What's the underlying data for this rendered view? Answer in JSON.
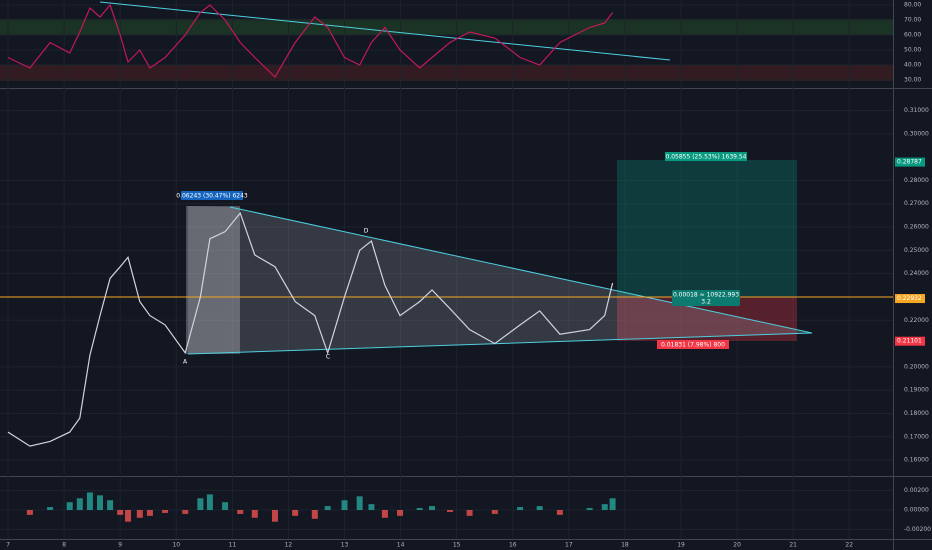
{
  "x_axis": {
    "xlim": [
      6.857,
      22.78
    ],
    "xticks": [
      7,
      8,
      9,
      10,
      11,
      12,
      13,
      14,
      15,
      16,
      17,
      18,
      19,
      20,
      21,
      22
    ]
  },
  "panes": [
    {
      "type": "line",
      "color": "#c2185b",
      "ylim": [
        24.67,
        83.33
      ],
      "yticks": [
        {
          "value": 80,
          "label": "80.00"
        },
        {
          "value": 70,
          "label": "70.00"
        },
        {
          "value": 60,
          "label": "60.00"
        },
        {
          "value": 50,
          "label": "50.00"
        },
        {
          "value": 40,
          "label": "40.00"
        },
        {
          "value": 30,
          "label": "30.00"
        }
      ],
      "x": [
        7.0,
        7.39,
        7.75,
        8.1,
        8.28,
        8.46,
        8.64,
        8.82,
        9.0,
        9.14,
        9.35,
        9.53,
        9.8,
        10.16,
        10.43,
        10.6,
        10.87,
        11.14,
        11.4,
        11.76,
        12.12,
        12.47,
        12.7,
        13.0,
        13.27,
        13.48,
        13.72,
        13.99,
        14.34,
        14.56,
        14.88,
        15.23,
        15.68,
        16.13,
        16.48,
        16.84,
        17.37,
        17.64,
        17.78
      ],
      "values": [
        45,
        38,
        55,
        48,
        62,
        78,
        72,
        80,
        60,
        42,
        50,
        38,
        45,
        60,
        75,
        80,
        70,
        55,
        45,
        32,
        55,
        72,
        65,
        45,
        40,
        55,
        65,
        50,
        38,
        45,
        55,
        62,
        58,
        45,
        40,
        55,
        65,
        68,
        75
      ]
    },
    {
      "type": "line",
      "color": "#d1d4dc",
      "ylim": [
        0.1536,
        0.3188
      ],
      "yticks": [
        {
          "value": 0.31,
          "label": "0.31000"
        },
        {
          "value": 0.3,
          "label": "0.30000"
        },
        {
          "value": 0.28,
          "label": "0.28000"
        },
        {
          "value": 0.27,
          "label": "0.27000"
        },
        {
          "value": 0.26,
          "label": "0.26000"
        },
        {
          "value": 0.25,
          "label": "0.25000"
        },
        {
          "value": 0.24,
          "label": "0.24000"
        },
        {
          "value": 0.22,
          "label": "0.22000"
        },
        {
          "value": 0.2,
          "label": "0.20000"
        },
        {
          "value": 0.19,
          "label": "0.19000"
        },
        {
          "value": 0.18,
          "label": "0.18000"
        },
        {
          "value": 0.17,
          "label": "0.17000"
        },
        {
          "value": 0.16,
          "label": "0.16000"
        }
      ],
      "x": [
        7.0,
        7.39,
        7.75,
        8.1,
        8.28,
        8.46,
        8.64,
        8.82,
        9.0,
        9.14,
        9.35,
        9.53,
        9.8,
        10.16,
        10.43,
        10.6,
        10.87,
        11.14,
        11.4,
        11.76,
        12.12,
        12.47,
        12.7,
        13.0,
        13.27,
        13.48,
        13.72,
        13.99,
        14.34,
        14.56,
        14.88,
        15.23,
        15.68,
        16.13,
        16.48,
        16.84,
        17.37,
        17.64,
        17.78
      ],
      "values": [
        0.172,
        0.166,
        0.168,
        0.172,
        0.178,
        0.205,
        0.222,
        0.238,
        0.243,
        0.247,
        0.228,
        0.222,
        0.218,
        0.206,
        0.23,
        0.255,
        0.258,
        0.266,
        0.248,
        0.243,
        0.228,
        0.222,
        0.206,
        0.23,
        0.25,
        0.254,
        0.235,
        0.222,
        0.228,
        0.233,
        0.225,
        0.216,
        0.21,
        0.218,
        0.224,
        0.214,
        0.216,
        0.222,
        0.236
      ],
      "price_tags": [
        {
          "value": 0.28787,
          "color": "#089981"
        },
        {
          "value": 0.22932,
          "color": "#f5a623"
        },
        {
          "value": 0.21101,
          "color": "#f23645"
        }
      ]
    },
    {
      "type": "bar",
      "up_color": "#26a69a",
      "down_color": "#ef5350",
      "ylim": [
        -0.00287,
        0.00328
      ],
      "yticks": [
        {
          "value": 0.002,
          "label": "0.00200"
        },
        {
          "value": 0,
          "label": "0.00000"
        },
        {
          "value": -0.002,
          "label": "-0.00200"
        }
      ],
      "x": [
        7.0,
        7.39,
        7.75,
        8.1,
        8.28,
        8.46,
        8.64,
        8.82,
        9.0,
        9.14,
        9.35,
        9.53,
        9.8,
        10.16,
        10.43,
        10.6,
        10.87,
        11.14,
        11.4,
        11.76,
        12.12,
        12.47,
        12.7,
        13.0,
        13.27,
        13.48,
        13.72,
        13.99,
        14.34,
        14.56,
        14.88,
        15.23,
        15.68,
        16.13,
        16.48,
        16.84,
        17.37,
        17.64,
        17.78
      ],
      "values": [
        0,
        -0.0005,
        0.0003,
        0.0008,
        0.0012,
        0.0018,
        0.0015,
        0.001,
        -0.0005,
        -0.0012,
        -0.0008,
        -0.0006,
        -0.0003,
        -0.0004,
        0.0012,
        0.0016,
        0.0008,
        -0.0004,
        -0.0008,
        -0.0012,
        -0.0006,
        -0.0009,
        0.0004,
        0.001,
        0.0014,
        0.0006,
        -0.0008,
        -0.0006,
        0.0002,
        0.0004,
        -0.0002,
        -0.0006,
        -0.0004,
        0.0003,
        0.0004,
        -0.0005,
        0.0002,
        0.0006,
        0.0012
      ]
    }
  ],
  "annotations": {
    "range_label": "0.06243 (30.47%) 6243",
    "target_label": "0.05855 (25.53%) 1639.54",
    "center_label": "0.00018 ≈ 10922.993",
    "center_ratio": "3.2",
    "stop_label": "0.01831 (7.98%) 800",
    "point_a": "A",
    "point_c": "C",
    "point_d": "D"
  }
}
